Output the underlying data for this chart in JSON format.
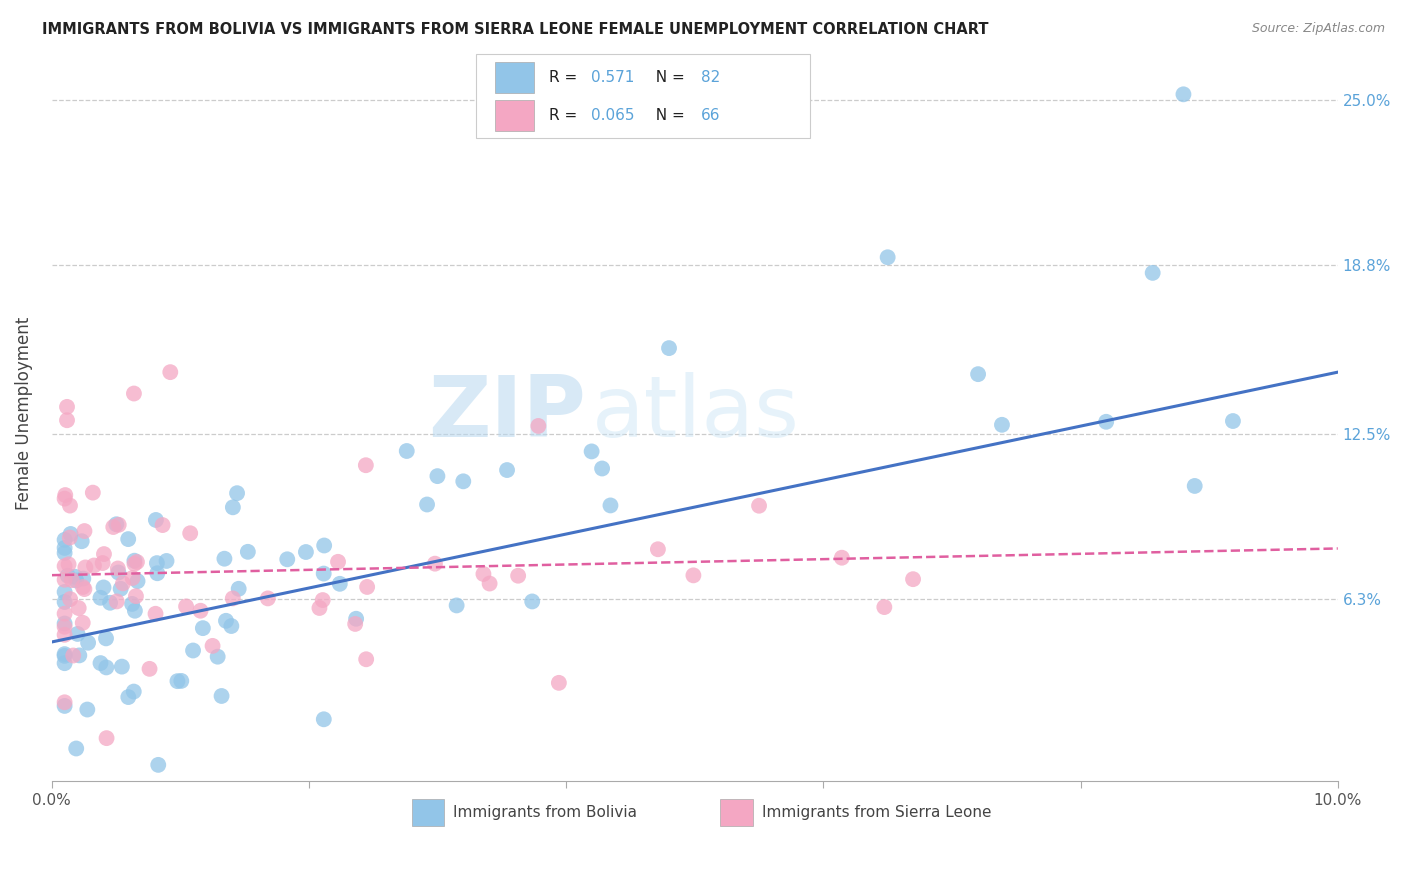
{
  "title": "IMMIGRANTS FROM BOLIVIA VS IMMIGRANTS FROM SIERRA LEONE FEMALE UNEMPLOYMENT CORRELATION CHART",
  "source": "Source: ZipAtlas.com",
  "xlabel_bolivia": "Immigrants from Bolivia",
  "xlabel_sierra": "Immigrants from Sierra Leone",
  "ylabel": "Female Unemployment",
  "watermark_zip": "ZIP",
  "watermark_atlas": "atlas",
  "bolivia_R": 0.571,
  "bolivia_N": 82,
  "sierra_R": 0.065,
  "sierra_N": 66,
  "xlim": [
    0,
    0.1
  ],
  "ylim": [
    -0.005,
    0.27
  ],
  "ytick_labels": [
    "6.3%",
    "12.5%",
    "18.8%",
    "25.0%"
  ],
  "ytick_values": [
    0.063,
    0.125,
    0.188,
    0.25
  ],
  "color_bolivia": "#92c5e8",
  "color_sierra": "#f4a7c3",
  "color_trend_bolivia": "#4472c4",
  "color_trend_sierra": "#e05fa0",
  "background_color": "#ffffff",
  "grid_color": "#cccccc",
  "title_color": "#222222",
  "source_color": "#888888",
  "right_tick_color": "#5ba3d9"
}
